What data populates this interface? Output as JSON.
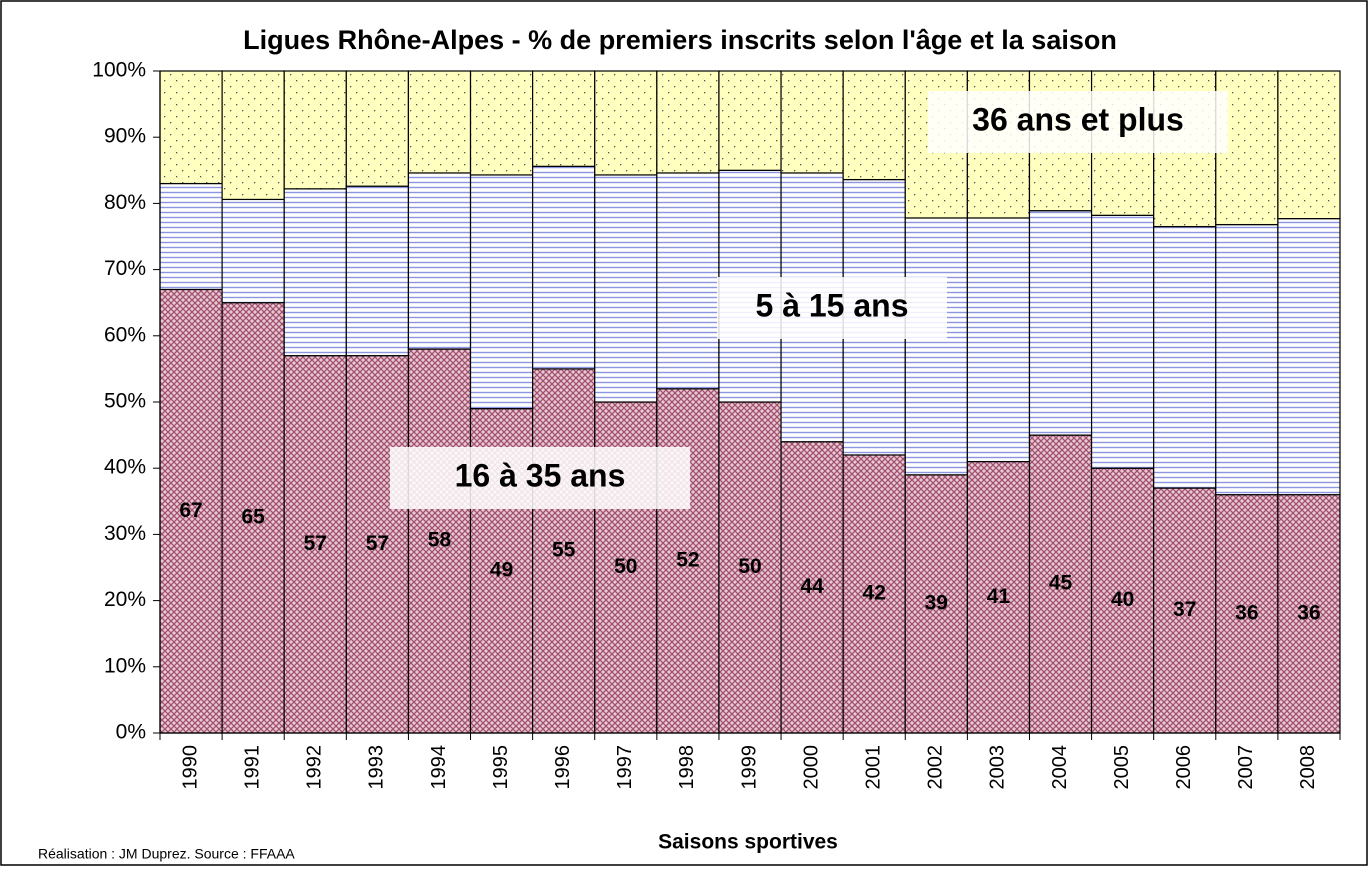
{
  "chart_data": {
    "type": "stacked_bar",
    "title": "Ligues Rhône-Alpes - % de premiers inscrits selon l'âge et la saison",
    "x_label": "Saisons sportives",
    "note": "Réalisation : JM Duprez. Source : FFAAA",
    "categories": [
      "1990",
      "1991",
      "1992",
      "1993",
      "1994",
      "1995",
      "1996",
      "1997",
      "1998",
      "1999",
      "2000",
      "2001",
      "2002",
      "2003",
      "2004",
      "2005",
      "2006",
      "2007",
      "2008"
    ],
    "series": [
      {
        "name": "16 à 35 ans",
        "color": "#c48aa0",
        "values": [
          67,
          65,
          57,
          57,
          58,
          49,
          55,
          50,
          52,
          50,
          44,
          42,
          39,
          41,
          45,
          40,
          37,
          36,
          36
        ]
      },
      {
        "name": "5 à 15 ans",
        "color": "#9ea8e8",
        "values": [
          16,
          15.6,
          25.2,
          25.6,
          26.6,
          35.3,
          30.6,
          34.3,
          32.6,
          35,
          40.6,
          41.6,
          38.8,
          36.8,
          33.9,
          38.2,
          39.5,
          40.8,
          41.7
        ]
      },
      {
        "name": "36 ans et plus",
        "color": "#ffffc0",
        "values": [
          17,
          19.4,
          17.8,
          17.4,
          15.4,
          15.7,
          14.4,
          15.7,
          15.4,
          15,
          15.4,
          16.4,
          22.2,
          22.2,
          21.1,
          21.8,
          23.5,
          23.2,
          22.3
        ]
      }
    ],
    "ylim": [
      0,
      100
    ],
    "yticks": [
      {
        "value": 0,
        "label": "0%"
      },
      {
        "value": 10,
        "label": "10%"
      },
      {
        "value": 20,
        "label": "20%"
      },
      {
        "value": 30,
        "label": "30%"
      },
      {
        "value": 40,
        "label": "40%"
      },
      {
        "value": 50,
        "label": "50%"
      },
      {
        "value": 60,
        "label": "60%"
      },
      {
        "value": 70,
        "label": "70%"
      },
      {
        "value": 80,
        "label": "80%"
      },
      {
        "value": 90,
        "label": "90%"
      },
      {
        "value": 100,
        "label": "100%"
      }
    ]
  }
}
